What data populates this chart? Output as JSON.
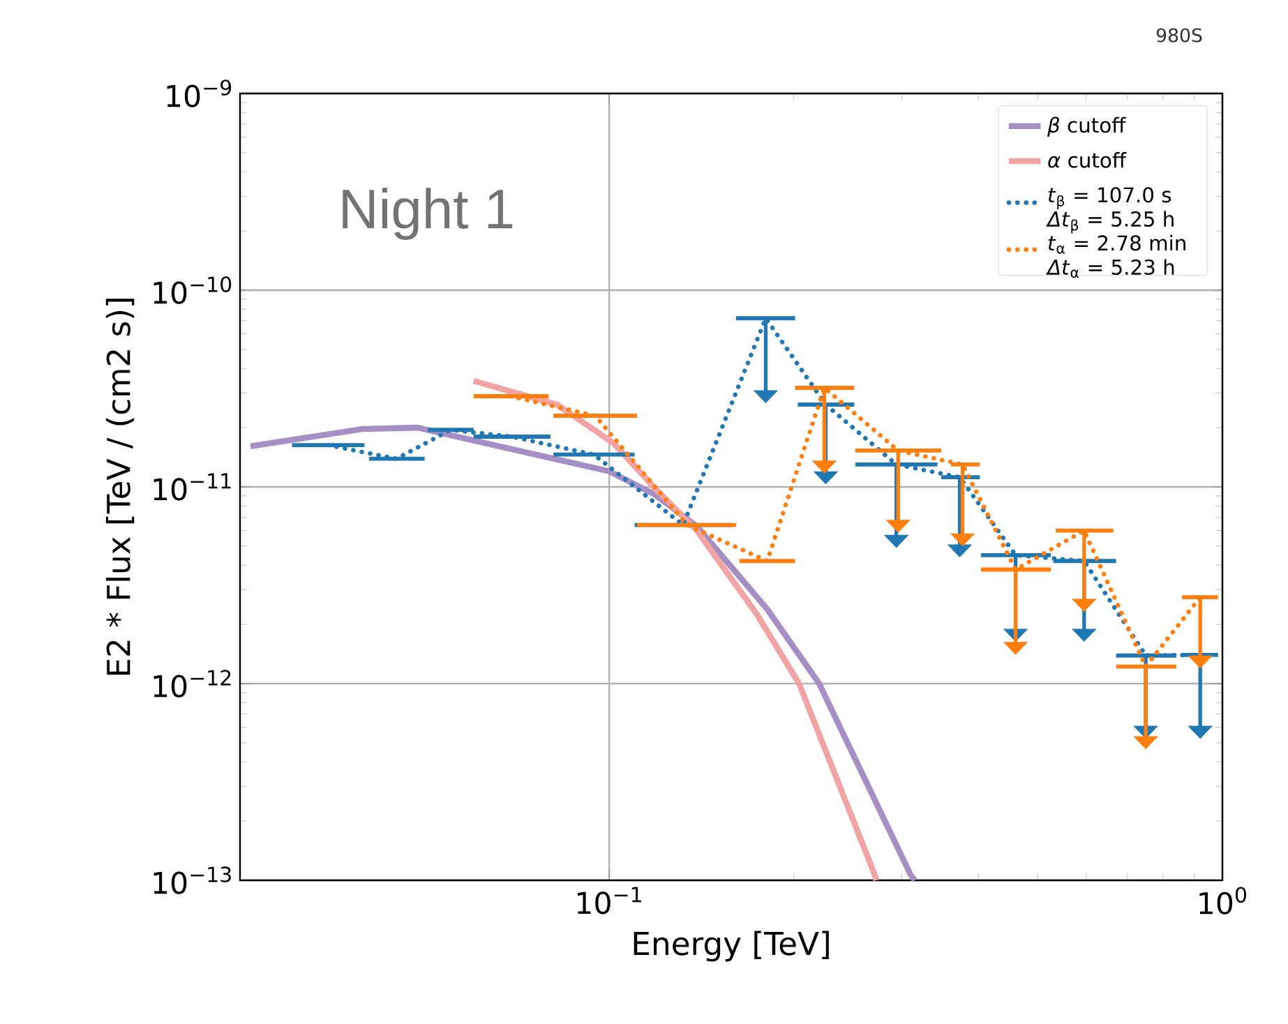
{
  "chart_data": {
    "type": "line",
    "xlabel": "Energy [TeV]",
    "ylabel": "E2 * Flux [TeV / (cm2 s)]",
    "log": "xy",
    "grid": true,
    "legend": "top right",
    "xlim": [
      0.025,
      1
    ],
    "ylim": [
      1e-13,
      1e-09
    ],
    "xticks": [
      {
        "value": 0.1,
        "label": "10$^{−1}$"
      },
      {
        "value": 1,
        "label": "10$^{0}$"
      }
    ],
    "yticks": [
      {
        "value": 1e-13,
        "label": "10$^{−13}$"
      },
      {
        "value": 1e-12,
        "label": "10$^{−12}$"
      },
      {
        "value": 1e-11,
        "label": "10$^{−11}$"
      },
      {
        "value": 1e-10,
        "label": "10$^{−10}$"
      },
      {
        "value": 1e-09,
        "label": "10$^{−9}$"
      }
    ],
    "annotations": [
      "980S",
      "Night 1"
    ],
    "series": [
      {
        "name": "*β* cutoff",
        "color": "#a58fc4",
        "line_style": "solid",
        "x": [
          0.026,
          0.0396,
          0.0487,
          0.1,
          0.119,
          0.139,
          0.181,
          0.22,
          0.31,
          0.315
        ],
        "values": [
          1.61e-11,
          1.97e-11,
          2e-11,
          1.2e-11,
          9.1e-12,
          6.3e-12,
          2.39e-12,
          1e-12,
          1.07e-13,
          1e-13
        ]
      },
      {
        "name": "*α* cutoff",
        "color": "#f2a3a3",
        "line_style": "solid",
        "x": [
          0.0601,
          0.0822,
          0.1016,
          0.1189,
          0.139,
          0.174,
          0.204,
          0.271,
          0.2725
        ],
        "values": [
          3.46e-11,
          2.62e-11,
          1.67e-11,
          9.8e-12,
          6e-12,
          2.26e-12,
          1e-12,
          1.07e-13,
          1e-13
        ]
      },
      {
        "name": "*t*$_{β}$ = 107.0 s *Δt*$_{β}$ = 5.25 h",
        "color": "#1f77b4",
        "line_style": "dotted",
        "x": [
          0.0348,
          0.045,
          0.0551,
          0.0694,
          0.0944,
          0.132,
          0.18,
          0.2255,
          0.294,
          0.373,
          0.46,
          0.595,
          0.75,
          0.92
        ],
        "values": [
          1.63e-11,
          1.39e-11,
          1.95e-11,
          1.8e-11,
          1.46e-11,
          6.4e-12,
          7.2e-11,
          2.62e-11,
          1.3e-11,
          1.12e-11,
          4.5e-12,
          4.2e-12,
          1.39e-12,
          1.4e-12
        ],
        "xerrors": [
          [
            0.0304,
            0.0399
          ],
          [
            0.0406,
            0.05
          ],
          [
            0.0506,
            0.0601
          ],
          [
            0.0601,
            0.0802
          ],
          [
            0.0811,
            0.11
          ],
          [
            0.11,
            0.1586
          ],
          [
            0.161,
            0.201
          ],
          [
            0.203,
            0.251
          ],
          [
            0.252,
            0.343
          ],
          [
            0.348,
            0.402
          ],
          [
            0.404,
            0.525
          ],
          [
            0.53,
            0.671
          ],
          [
            0.671,
            0.841
          ],
          [
            0.859,
            0.984
          ]
        ],
        "errors": [
          null,
          null,
          null,
          null,
          null,
          null,
          [
            3.1e-11,
            7.2e-11
          ],
          [
            1.2e-11,
            2.62e-11
          ],
          [
            5.7e-12,
            1.3e-11
          ],
          [
            5.1e-12,
            1.12e-11
          ],
          [
            1.9e-12,
            4.5e-12
          ],
          [
            1.9e-12,
            4.2e-12
          ],
          [
            6.1e-13,
            1.39e-12
          ],
          [
            6.1e-13,
            1.4e-12
          ]
        ]
      },
      {
        "name": "*t*$_{α}$ = 2.78 min *Δt*$_{α}$ = 5.23 h",
        "color": "#ff7f0e",
        "line_style": "dotted",
        "x": [
          0.069,
          0.0949,
          0.134,
          0.181,
          0.2243,
          0.296,
          0.377,
          0.46,
          0.595,
          0.75,
          0.92
        ],
        "values": [
          2.89e-11,
          2.3e-11,
          6.4e-12,
          4.2e-12,
          3.19e-11,
          1.53e-11,
          1.3e-11,
          3.8e-12,
          6e-12,
          1.22e-12,
          2.75e-12
        ],
        "xerrors": [
          [
            0.0601,
            0.0797
          ],
          [
            0.0811,
            0.111
          ],
          [
            0.111,
            0.161
          ],
          [
            0.163,
            0.201
          ],
          [
            0.201,
            0.251
          ],
          [
            0.252,
            0.348
          ],
          [
            0.361,
            0.402
          ],
          [
            0.404,
            0.525
          ],
          [
            0.535,
            0.664
          ],
          [
            0.671,
            0.841
          ],
          [
            0.859,
            0.984
          ]
        ],
        "errors": [
          null,
          null,
          null,
          null,
          [
            1.36e-11,
            3.19e-11
          ],
          [
            6.8e-12,
            1.53e-11
          ],
          [
            5.8e-12,
            1.3e-11
          ],
          [
            1.63e-12,
            3.8e-12
          ],
          [
            2.7e-12,
            6e-12
          ],
          [
            5.4e-13,
            1.22e-12
          ],
          [
            1.39e-12,
            2.75e-12
          ]
        ]
      }
    ]
  }
}
